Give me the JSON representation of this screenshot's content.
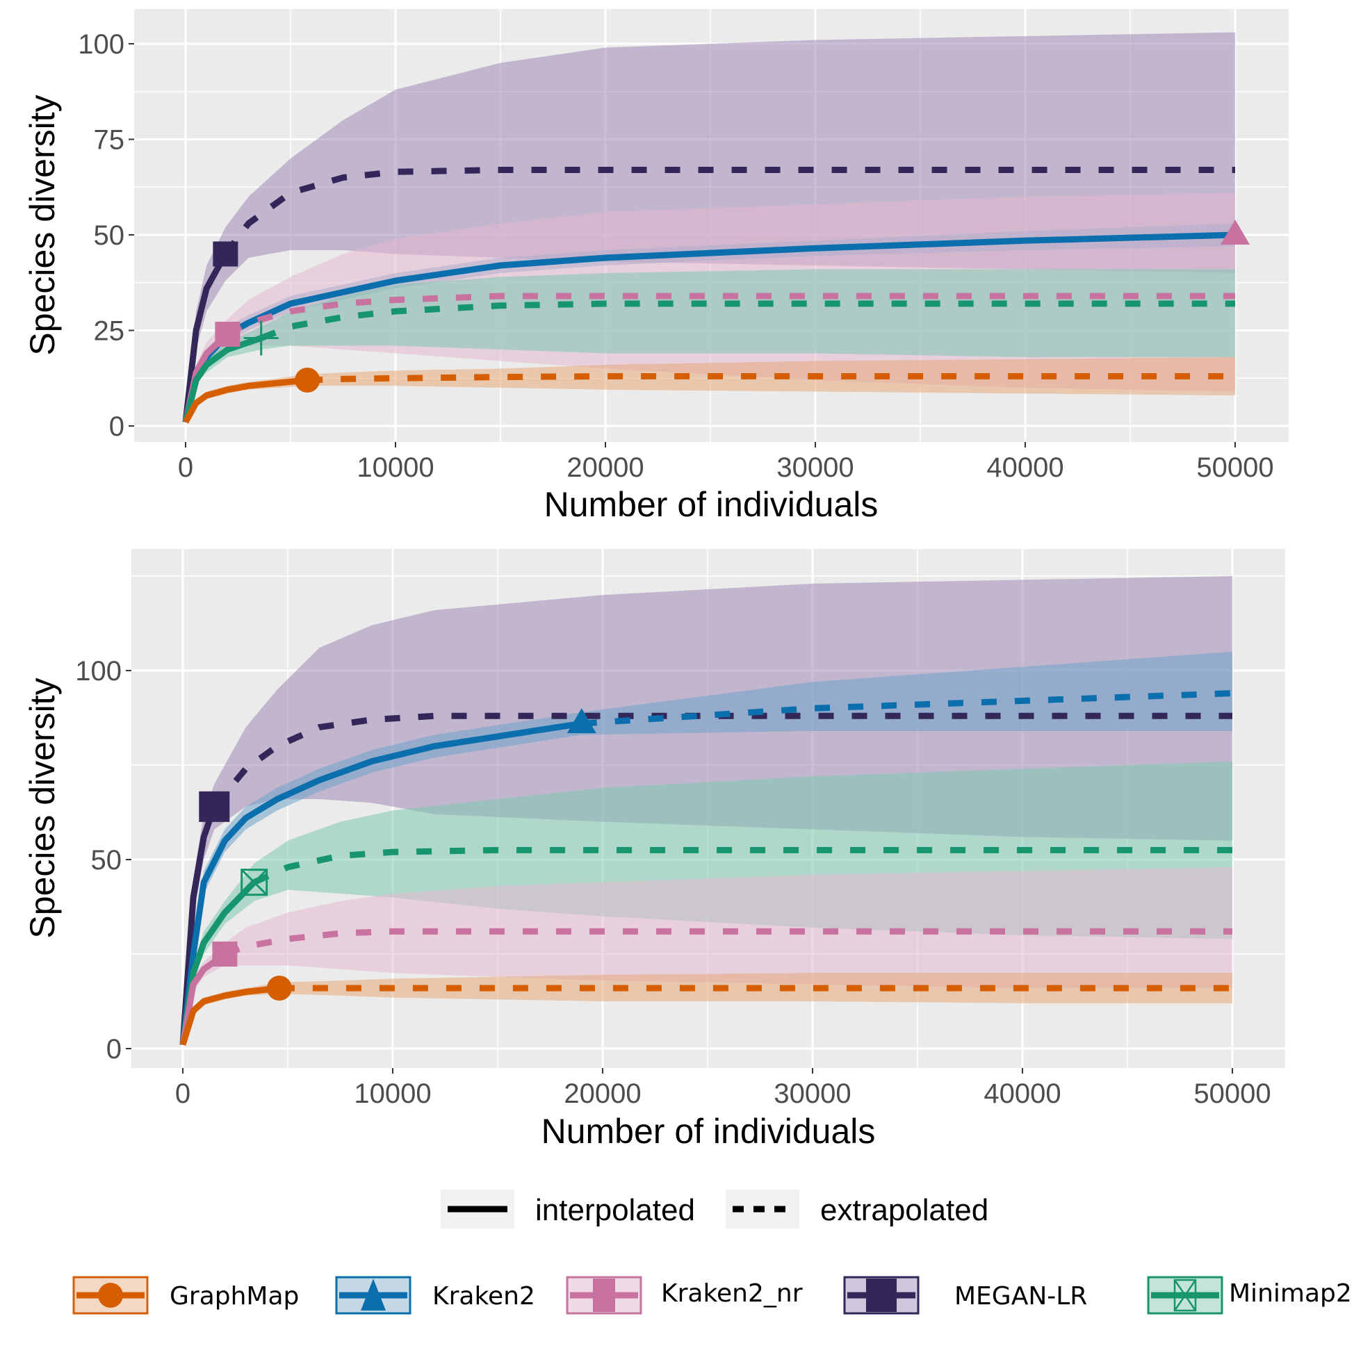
{
  "chart_data": {
    "type": "line",
    "panels": [
      {
        "id": "top",
        "xlabel": "Number of individuals",
        "ylabel": "Species diversity",
        "xlim": [
          -2500,
          52500
        ],
        "ylim": [
          -4,
          108
        ],
        "xticks": [
          0,
          10000,
          20000,
          30000,
          40000,
          50000
        ],
        "xtick_labels": [
          "0",
          "10000",
          "20000",
          "30000",
          "40000",
          "50000"
        ],
        "yticks": [
          0,
          25,
          50,
          75,
          100
        ],
        "ytick_labels": [
          "0",
          "25",
          "50",
          "75",
          "100"
        ],
        "grid": true,
        "series": [
          {
            "name": "MEGAN-LR",
            "observed_x": 1900,
            "observed_y": 45,
            "x": [
              0,
              500,
              1000,
              1900,
              3000,
              5000,
              7500,
              10000,
              15000,
              20000,
              30000,
              40000,
              50000
            ],
            "y": [
              1,
              25,
              36,
              45,
              53,
              61,
              65,
              66.5,
              67,
              67,
              67,
              67,
              67
            ],
            "lower": [
              1,
              20,
              30,
              38,
              44,
              46,
              46,
              45,
              44,
              43,
              42,
              41,
              40
            ],
            "upper": [
              1,
              30,
              42,
              52,
              60,
              70,
              80,
              88,
              95,
              99,
              101,
              102,
              103
            ]
          },
          {
            "name": "Kraken2",
            "observed_x": 50000,
            "observed_y": 50,
            "x": [
              0,
              500,
              1000,
              2000,
              3000,
              5000,
              7500,
              10000,
              15000,
              20000,
              30000,
              40000,
              50000
            ],
            "y": [
              1,
              12,
              18,
              24,
              27,
              32,
              35,
              38,
              42,
              44,
              46.5,
              48.5,
              50
            ],
            "lower": [
              1,
              10,
              16,
              22,
              25,
              30,
              33,
              36,
              40,
              42,
              44.5,
              46,
              47
            ],
            "upper": [
              1,
              14,
              20,
              26,
              29,
              34,
              37,
              40,
              44,
              46,
              48.5,
              51,
              53
            ]
          },
          {
            "name": "Kraken2_nr",
            "observed_x": 2000,
            "observed_y": 24,
            "x": [
              0,
              500,
              1000,
              2000,
              3000,
              5000,
              7500,
              10000,
              15000,
              20000,
              30000,
              40000,
              50000
            ],
            "y": [
              1,
              14,
              19,
              24,
              27,
              30,
              32,
              33,
              34,
              34,
              34,
              34,
              34
            ],
            "lower": [
              1,
              12,
              16,
              20,
              21,
              21,
              20,
              19,
              17,
              15,
              12,
              10,
              9
            ],
            "upper": [
              1,
              16,
              22,
              28,
              33,
              39,
              45,
              49,
              53,
              56,
              58,
              60,
              61
            ]
          },
          {
            "name": "Minimap2",
            "observed_x": 3600,
            "observed_y": 23,
            "x": [
              0,
              500,
              1000,
              2000,
              3600,
              5000,
              7500,
              10000,
              15000,
              20000,
              30000,
              40000,
              50000
            ],
            "y": [
              1,
              12,
              16,
              20,
              23,
              26,
              28.5,
              30,
              31.5,
              32,
              32,
              32,
              32
            ],
            "lower": [
              1,
              11,
              14,
              18,
              20,
              21,
              21,
              21,
              20,
              19,
              19,
              18,
              18
            ],
            "upper": [
              1,
              13,
              18,
              22,
              26,
              30,
              34,
              37,
              39,
              40,
              41,
              41,
              41
            ]
          },
          {
            "name": "GraphMap",
            "observed_x": 5800,
            "observed_y": 12,
            "x": [
              0,
              500,
              1000,
              2000,
              3000,
              5800,
              7500,
              10000,
              15000,
              20000,
              30000,
              40000,
              50000
            ],
            "y": [
              1,
              6,
              8,
              9.5,
              10.5,
              12,
              12.3,
              12.5,
              12.8,
              13,
              13,
              13,
              13
            ],
            "lower": [
              1,
              5,
              7,
              8.5,
              9.5,
              10.5,
              10.5,
              10.5,
              10,
              9.5,
              9,
              8.5,
              8
            ],
            "upper": [
              1,
              7,
              9,
              10.5,
              11.5,
              13.5,
              14,
              14.5,
              15,
              16,
              17,
              17.5,
              18
            ]
          }
        ]
      },
      {
        "id": "bottom",
        "xlabel": "Number of individuals",
        "ylabel": "Species diversity",
        "xlim": [
          -2500,
          52500
        ],
        "ylim": [
          -5,
          132
        ],
        "xticks": [
          0,
          10000,
          20000,
          30000,
          40000,
          50000
        ],
        "xtick_labels": [
          "0",
          "10000",
          "20000",
          "30000",
          "40000",
          "50000"
        ],
        "yticks": [
          0,
          50,
          100
        ],
        "ytick_labels": [
          "0",
          "50",
          "100"
        ],
        "grid": true,
        "series": [
          {
            "name": "MEGAN-LR",
            "observed_x": 1500,
            "observed_y": 64,
            "x": [
              0,
              500,
              1000,
              1500,
              3000,
              4500,
              6500,
              9000,
              12000,
              20000,
              30000,
              40000,
              50000
            ],
            "y": [
              1,
              40,
              56,
              64,
              74,
              80,
              85,
              87,
              88,
              88,
              88,
              88,
              88
            ],
            "lower": [
              1,
              35,
              50,
              58,
              64,
              66,
              66,
              65,
              62,
              60,
              58,
              56,
              55
            ],
            "upper": [
              1,
              45,
              62,
              70,
              85,
              95,
              106,
              112,
              116,
              120,
              123,
              124,
              125
            ]
          },
          {
            "name": "Kraken2",
            "observed_x": 19000,
            "observed_y": 86,
            "x": [
              0,
              500,
              1000,
              2000,
              3000,
              4500,
              6500,
              9000,
              12000,
              19000,
              30000,
              40000,
              50000
            ],
            "y": [
              1,
              25,
              44,
              55,
              61,
              66,
              71,
              76,
              80,
              86,
              90,
              92,
              94
            ],
            "lower": [
              1,
              22,
              41,
              52,
              58,
              63,
              68,
              73,
              77,
              83,
              84,
              84,
              84
            ],
            "upper": [
              1,
              28,
              47,
              58,
              64,
              69,
              74,
              79,
              83,
              89,
              97,
              101,
              105
            ]
          },
          {
            "name": "Minimap2",
            "observed_x": 3400,
            "observed_y": 44,
            "x": [
              0,
              500,
              1000,
              2000,
              3400,
              5000,
              7500,
              10000,
              15000,
              20000,
              30000,
              40000,
              50000
            ],
            "y": [
              1,
              20,
              28,
              36,
              44,
              48,
              51,
              52,
              52.5,
              52.5,
              52.5,
              52.5,
              52.5
            ],
            "lower": [
              1,
              18,
              25,
              33,
              39,
              42,
              41,
              40,
              37,
              35,
              32,
              30,
              29
            ],
            "upper": [
              1,
              22,
              31,
              39,
              49,
              55,
              60,
              63,
              66,
              69,
              72,
              74,
              76
            ]
          },
          {
            "name": "Kraken2_nr",
            "observed_x": 2000,
            "observed_y": 25,
            "x": [
              0,
              500,
              1000,
              2000,
              3000,
              5000,
              7500,
              10000,
              15000,
              20000,
              30000,
              40000,
              50000
            ],
            "y": [
              1,
              17,
              21,
              25,
              27,
              29,
              30.5,
              31,
              31,
              31,
              31,
              31,
              31
            ],
            "lower": [
              1,
              15,
              19,
              22,
              22,
              22,
              21,
              20,
              19,
              18,
              17,
              16,
              16
            ],
            "upper": [
              1,
              19,
              23,
              28,
              32,
              36,
              39,
              41,
              43,
              44,
              46,
              47,
              48
            ]
          },
          {
            "name": "GraphMap",
            "observed_x": 4600,
            "observed_y": 16,
            "x": [
              0,
              500,
              1000,
              2000,
              3000,
              4600,
              7500,
              10000,
              15000,
              20000,
              30000,
              40000,
              50000
            ],
            "y": [
              1,
              10,
              12.5,
              14,
              15,
              16,
              16,
              16,
              16,
              16,
              16,
              16,
              16
            ],
            "lower": [
              1,
              9,
              11.5,
              13,
              14,
              14.5,
              14,
              13.5,
              13,
              12.5,
              12.5,
              12,
              12
            ],
            "upper": [
              1,
              11,
              13.5,
              15,
              16,
              17.5,
              18,
              18.5,
              19,
              19.5,
              20,
              20,
              20
            ]
          }
        ]
      }
    ],
    "linetype_legend": [
      {
        "label": "interpolated",
        "style": "solid"
      },
      {
        "label": "extrapolated",
        "style": "dashed"
      }
    ],
    "group_legend": [
      {
        "label": "GraphMap",
        "color": "#D55E00",
        "shape": "circle"
      },
      {
        "label": "Kraken2",
        "color": "#0B6EAD",
        "shape": "triangle"
      },
      {
        "label": "Kraken2_nr",
        "color": "#C8729F",
        "shape": "square"
      },
      {
        "label": "MEGAN-LR",
        "color": "#332759",
        "shape": "square"
      },
      {
        "label": "Minimap2",
        "color": "#16956E",
        "shape": "square-x"
      }
    ]
  }
}
